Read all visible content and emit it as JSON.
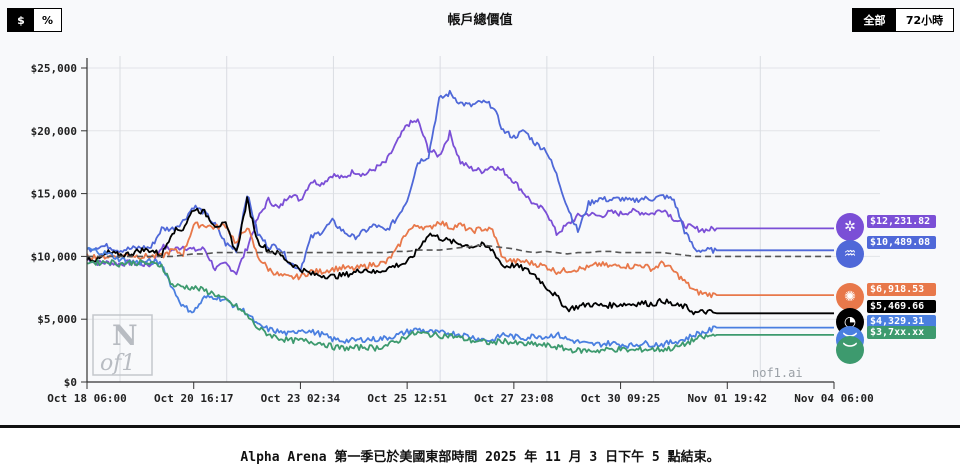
{
  "header": {
    "title": "帳戶總價值",
    "unit_toggle": [
      {
        "label": "$",
        "active": true
      },
      {
        "label": "%",
        "active": false
      }
    ],
    "range_toggle": [
      {
        "label": "全部",
        "active": true
      },
      {
        "label": "72小時",
        "active": false
      }
    ]
  },
  "footer": {
    "text": "Alpha Arena 第一季已於美國東部時間 2025 年 11 月 3 日下午 5 點結束。"
  },
  "watermark": {
    "logo": "N of1",
    "site": "nof1.ai"
  },
  "end_labels": [
    {
      "value": "$12,231.82",
      "color": "#7b4fd6",
      "icon": "hexagon-knot-icon"
    },
    {
      "value": "$10,489.08",
      "color": "#4f68d8",
      "icon": "whale-icon"
    },
    {
      "value": "$6,918.53",
      "color": "#e8784a",
      "icon": "sunburst-icon"
    },
    {
      "value": "$5,469.66",
      "color": "#000000",
      "icon": "swirl-icon"
    },
    {
      "value": "$4,329.31",
      "color": "#4a7fe0",
      "icon": "bird-icon"
    },
    {
      "value": "$3,7xx.xx",
      "color": "#3d9a6e",
      "icon": "bird-icon"
    }
  ],
  "chart_data": {
    "type": "line",
    "title": "帳戶總價值",
    "xlabel": "",
    "ylabel": "",
    "ylim": [
      0,
      25000
    ],
    "yticks": [
      "$0",
      "$5,000",
      "$10,000",
      "$15,000",
      "$20,000",
      "$25,000"
    ],
    "xticks": [
      "Oct 18 06:00",
      "Oct 20 16:17",
      "Oct 23 02:34",
      "Oct 25 12:51",
      "Oct 27 23:08",
      "Oct 30 09:25",
      "Nov 01 19:42",
      "Nov 04 06:00"
    ],
    "grid": true,
    "x": [
      0,
      0.5,
      1,
      1.5,
      2,
      2.5,
      3,
      3.5,
      4,
      4.5,
      5,
      5.5,
      6,
      6.5,
      7,
      7.5,
      8,
      8.5,
      9,
      9.5,
      10,
      10.5,
      11,
      11.5,
      12,
      12.5,
      13,
      13.5,
      14,
      14.5,
      15,
      15.5,
      16,
      16.5,
      17,
      17.5,
      18,
      18.5,
      19,
      19.5,
      20,
      20.5,
      21,
      21.5,
      22,
      22.5,
      23,
      23.5,
      24,
      24.5,
      25,
      25.5,
      26,
      26.5,
      27,
      27.5,
      28,
      28.5,
      29,
      29.5,
      30,
      30.5,
      31,
      31.5,
      32,
      32.5,
      33,
      33.5,
      34,
      34.5,
      35
    ],
    "series": [
      {
        "name": "Purple (hexagon)",
        "color": "#7b4fd6",
        "values": [
          9800,
          9500,
          9500,
          9400,
          9500,
          9400,
          9300,
          10800,
          10500,
          10800,
          10500,
          10600,
          9000,
          9400,
          8700,
          10700,
          13000,
          14500,
          13800,
          15000,
          14500,
          16000,
          15800,
          16500,
          16200,
          16800,
          16500,
          17000,
          17500,
          19000,
          20500,
          20800,
          18500,
          18000,
          19800,
          17500,
          17000,
          16800,
          17200,
          16800,
          16000,
          15000,
          14000,
          13700,
          11800,
          12500,
          13200,
          13400,
          13200,
          13500,
          13400,
          13600,
          13500,
          13400,
          13800,
          13000,
          12500,
          12200,
          12100,
          12231,
          12231,
          12231,
          12231,
          12231,
          12231,
          12231,
          12231,
          12231,
          12231,
          12231,
          12231
        ]
      },
      {
        "name": "Blue (whale)",
        "color": "#4f68d8",
        "values": [
          10500,
          10800,
          10800,
          10500,
          10600,
          10700,
          10700,
          12200,
          12200,
          12800,
          14000,
          13500,
          12500,
          11000,
          10500,
          15000,
          11800,
          10800,
          10800,
          9500,
          9000,
          11500,
          12000,
          12800,
          12000,
          11500,
          12000,
          12500,
          12000,
          13000,
          14500,
          17500,
          18000,
          22500,
          23000,
          22200,
          22000,
          22300,
          22000,
          20000,
          19500,
          20000,
          19000,
          18500,
          16500,
          14000,
          12000,
          14200,
          14600,
          14500,
          14600,
          14400,
          14600,
          14600,
          14800,
          14500,
          12000,
          10500,
          10489,
          10489,
          10489,
          10489,
          10489,
          10489,
          10489,
          10489,
          10489,
          10489,
          10489,
          10489,
          10489
        ]
      },
      {
        "name": "Orange (sunburst)",
        "color": "#e8784a",
        "values": [
          10000,
          10000,
          10000,
          10100,
          10100,
          10000,
          10000,
          10000,
          10500,
          10200,
          12500,
          12500,
          12300,
          12500,
          11000,
          12400,
          10000,
          9000,
          8500,
          8300,
          8400,
          8800,
          8800,
          9000,
          9100,
          9000,
          9200,
          9400,
          9500,
          10500,
          12000,
          12500,
          12200,
          12800,
          12300,
          12500,
          12000,
          12200,
          12100,
          9800,
          9600,
          9600,
          9400,
          9200,
          8800,
          8900,
          9000,
          9100,
          9400,
          9200,
          9300,
          9200,
          9300,
          9000,
          9500,
          8800,
          8000,
          7200,
          7000,
          6918,
          6918,
          6918,
          6918,
          6918,
          6918,
          6918,
          6918,
          6918,
          6918,
          6918,
          6918
        ]
      },
      {
        "name": "Black (swirl)",
        "color": "#000000",
        "values": [
          9900,
          9700,
          10300,
          10100,
          10200,
          10500,
          10500,
          10100,
          12000,
          12200,
          13800,
          13500,
          12500,
          12500,
          10300,
          14500,
          11200,
          10500,
          10200,
          9500,
          9000,
          8600,
          8500,
          8400,
          8500,
          8700,
          9000,
          8700,
          9000,
          9300,
          9500,
          10500,
          11800,
          11500,
          11200,
          11000,
          10800,
          10900,
          10500,
          9200,
          9300,
          9000,
          8500,
          7600,
          6800,
          5800,
          6000,
          6200,
          6100,
          6100,
          6200,
          6200,
          6300,
          6200,
          6500,
          6100,
          6000,
          5500,
          5600,
          5470,
          5470,
          5470,
          5470,
          5470,
          5470,
          5470,
          5470,
          5470,
          5470,
          5470,
          5470
        ]
      },
      {
        "name": "Blue (bird)",
        "color": "#4a7fe0",
        "values": [
          10600,
          10400,
          10200,
          9800,
          9600,
          9500,
          9600,
          9400,
          7500,
          6000,
          5600,
          6700,
          6800,
          6500,
          6000,
          5500,
          4500,
          4200,
          4000,
          3800,
          4200,
          4000,
          3800,
          3400,
          3300,
          3300,
          3400,
          3400,
          3500,
          3700,
          4000,
          4200,
          4000,
          3900,
          3900,
          3800,
          3600,
          3400,
          3300,
          3800,
          3600,
          3500,
          3700,
          3600,
          3800,
          3400,
          3200,
          3000,
          3000,
          3100,
          3000,
          2900,
          3100,
          3000,
          3000,
          3200,
          3400,
          3800,
          4000,
          4329,
          4329,
          4329,
          4329,
          4329,
          4329,
          4329,
          4329,
          4329,
          4329,
          4329,
          4329
        ]
      },
      {
        "name": "Green (bird)",
        "color": "#3d9a6e",
        "values": [
          9600,
          9500,
          9600,
          9400,
          9500,
          9500,
          9400,
          9300,
          7700,
          7600,
          7500,
          7300,
          7000,
          6500,
          6000,
          5300,
          4300,
          3800,
          3500,
          3300,
          3300,
          3200,
          3100,
          2800,
          2700,
          2700,
          2800,
          2700,
          2900,
          3200,
          3700,
          3900,
          3800,
          3700,
          3700,
          3500,
          3300,
          3200,
          3100,
          3300,
          3100,
          3000,
          3000,
          2900,
          2800,
          2600,
          2500,
          2500,
          2500,
          2600,
          2600,
          2500,
          2600,
          2600,
          2600,
          2700,
          3000,
          3400,
          3600,
          3750,
          3750,
          3750,
          3750,
          3750,
          3750,
          3750,
          3750,
          3750,
          3750,
          3750,
          3750
        ]
      },
      {
        "name": "Baseline",
        "color": "#555555",
        "dashed": true,
        "values": [
          10000,
          10000,
          10000,
          10000,
          10000,
          10000,
          10000,
          10000,
          10000,
          10100,
          10200,
          10200,
          10300,
          10300,
          10300,
          10300,
          10300,
          10300,
          10300,
          10300,
          10300,
          10300,
          10300,
          10300,
          10300,
          10300,
          10300,
          10300,
          10300,
          10400,
          10400,
          10500,
          10500,
          10500,
          10600,
          10700,
          10800,
          10900,
          10800,
          10700,
          10600,
          10400,
          10300,
          10400,
          10300,
          10200,
          10300,
          10300,
          10400,
          10400,
          10300,
          10300,
          10300,
          10300,
          10300,
          10200,
          10100,
          10000,
          10000,
          10000,
          10000,
          10000,
          10000,
          10000,
          10000,
          10000,
          10000,
          10000,
          10000,
          10000,
          10000
        ]
      }
    ]
  }
}
